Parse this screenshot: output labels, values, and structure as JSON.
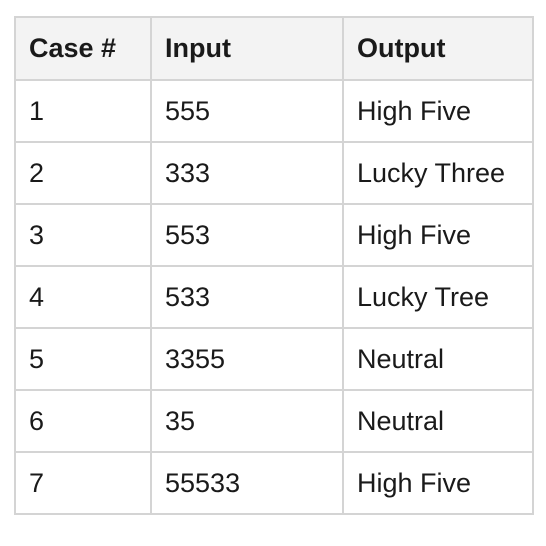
{
  "table": {
    "headers": [
      "Case #",
      "Input",
      "Output"
    ],
    "rows": [
      [
        "1",
        "555",
        "High Five"
      ],
      [
        "2",
        "333",
        "Lucky Three"
      ],
      [
        "3",
        "553",
        "High Five"
      ],
      [
        "4",
        "533",
        "Lucky Tree"
      ],
      [
        "5",
        "3355",
        "Neutral"
      ],
      [
        "6",
        "35",
        "Neutral"
      ],
      [
        "7",
        "55533",
        "High Five"
      ]
    ]
  },
  "colors": {
    "header_bg": "#f3f3f3",
    "border": "#d4d4d4",
    "text": "#1a1a1a"
  }
}
